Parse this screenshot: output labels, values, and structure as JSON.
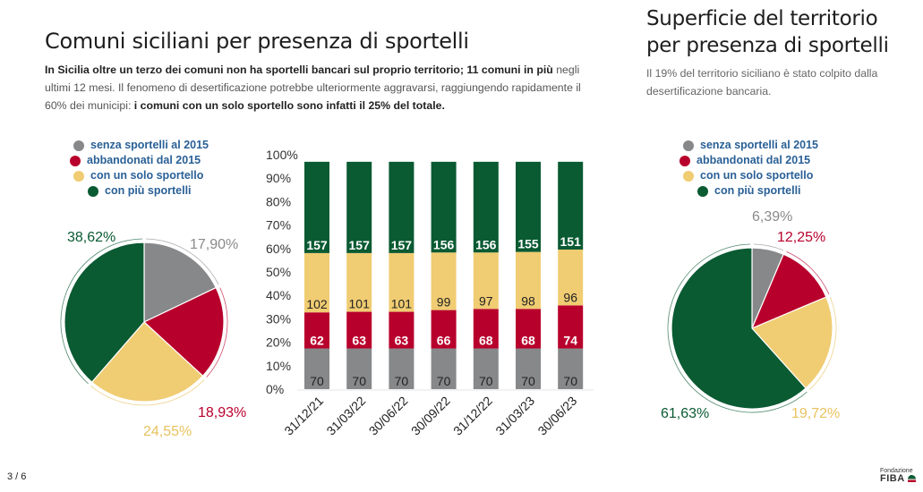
{
  "page": {
    "number": "3 / 6"
  },
  "logo": {
    "line1": "Fondazione",
    "line2": "FIBA",
    "icon": "fiba-logo-icon"
  },
  "left": {
    "title": "Comuni siciliani per presenza di sportelli",
    "desc_bold1": "In Sicilia oltre un terzo dei comuni non ha sportelli bancari sul proprio territorio; 11 comuni in più",
    "desc_normal": " negli ultimi 12 mesi. Il fenomeno di desertificazione potrebbe ulteriormente aggravarsi, raggiungendo rapidamente il 60% dei municipi: ",
    "desc_bold2": "i comuni con un solo sportello sono infatti il 25% del totale."
  },
  "right": {
    "title_line1": "Superficie del territorio",
    "title_line2": "per presenza di sportelli",
    "desc": "Il 19% del territorio siciliano è stato colpito dalla desertificazione bancaria."
  },
  "legend": [
    {
      "label": "senza sportelli al 2015",
      "color": "#87888a"
    },
    {
      "label": "abbandonati dal 2015",
      "color": "#b8002c"
    },
    {
      "label": "con un solo sportello",
      "color": "#f0cc72"
    },
    {
      "label": "con più sportelli",
      "color": "#0a5a32"
    }
  ],
  "chart_data": [
    {
      "type": "pie",
      "title": "Comuni siciliani per presenza di sportelli",
      "slices": [
        {
          "label": "senza sportelli al 2015",
          "value": 17.9,
          "text": "17,90%",
          "color": "#87888a"
        },
        {
          "label": "abbandonati dal 2015",
          "value": 18.93,
          "text": "18,93%",
          "color": "#b8002c"
        },
        {
          "label": "con un solo sportello",
          "value": 24.55,
          "text": "24,55%",
          "color": "#f0cc72"
        },
        {
          "label": "con più sportelli",
          "value": 38.62,
          "text": "38,62%",
          "color": "#0a5a32"
        }
      ]
    },
    {
      "type": "bar",
      "stacked": true,
      "categories": [
        "31/12/21",
        "31/03/22",
        "30/06/22",
        "30/09/22",
        "31/12/22",
        "31/03/23",
        "30/06/23"
      ],
      "series": [
        {
          "name": "senza sportelli al 2015",
          "color": "#87888a",
          "label_color": "#222222",
          "values": [
            70,
            70,
            70,
            70,
            70,
            70,
            70
          ]
        },
        {
          "name": "abbandonati dal 2015",
          "color": "#b8002c",
          "label_color": "#ffffff",
          "values": [
            62,
            63,
            63,
            66,
            68,
            68,
            74
          ]
        },
        {
          "name": "con un solo sportello",
          "color": "#f0cc72",
          "label_color": "#222222",
          "values": [
            102,
            101,
            101,
            99,
            97,
            98,
            96
          ]
        },
        {
          "name": "con più sportelli",
          "color": "#0a5a32",
          "label_color": "#ffffff",
          "values": [
            157,
            157,
            157,
            156,
            156,
            155,
            151
          ]
        }
      ],
      "y_ticks": [
        "0%",
        "10%",
        "20%",
        "30%",
        "40%",
        "50%",
        "60%",
        "70%",
        "80%",
        "90%",
        "100%"
      ],
      "ylim": [
        0,
        100
      ],
      "grid": false
    },
    {
      "type": "pie",
      "title": "Superficie del territorio per presenza di sportelli",
      "slices": [
        {
          "label": "senza sportelli al 2015",
          "value": 6.39,
          "text": "6,39%",
          "color": "#87888a"
        },
        {
          "label": "abbandonati dal 2015",
          "value": 12.25,
          "text": "12,25%",
          "color": "#b8002c"
        },
        {
          "label": "con un solo sportello",
          "value": 19.72,
          "text": "19,72%",
          "color": "#f0cc72"
        },
        {
          "label": "con più sportelli",
          "value": 61.63,
          "text": "61,63%",
          "color": "#0a5a32"
        }
      ]
    }
  ]
}
